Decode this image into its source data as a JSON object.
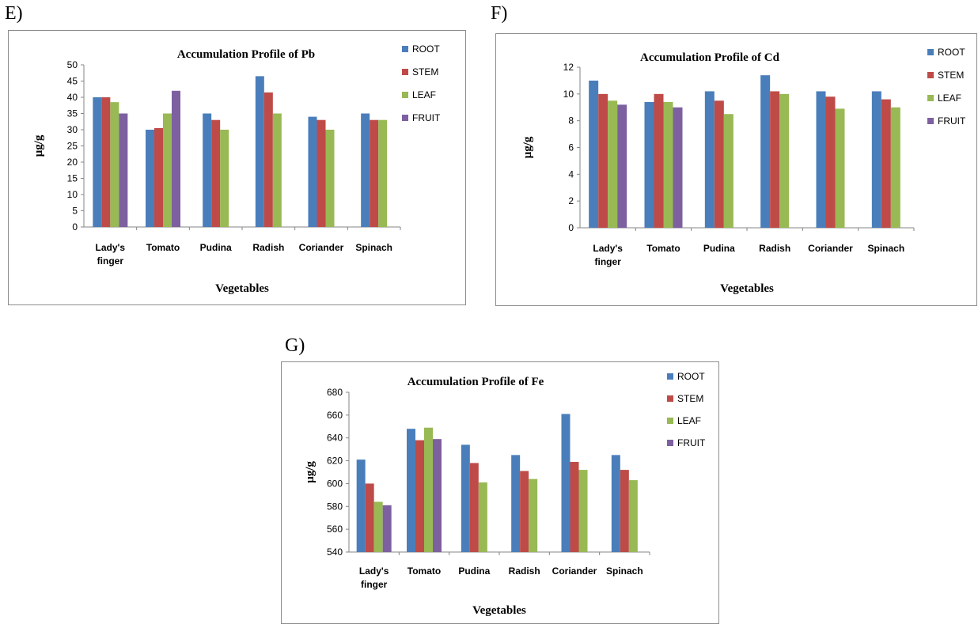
{
  "panels": [
    {
      "letter": "E)"
    },
    {
      "letter": "F)"
    },
    {
      "letter": "G)"
    }
  ],
  "colors": {
    "ROOT": "#4a7ebb",
    "STEM": "#be4b48",
    "LEAF": "#98b954",
    "FRUIT": "#7d60a0"
  },
  "chart_data": [
    {
      "type": "bar",
      "title": "Accumulation Profile of Pb",
      "xlabel": "Vegetables",
      "ylabel": "µg/g",
      "ylim": [
        0,
        50
      ],
      "yticks": [
        0,
        5,
        10,
        15,
        20,
        25,
        30,
        35,
        40,
        45,
        50
      ],
      "grid": false,
      "legend_position": "right",
      "categories": [
        "Lady's finger",
        "Tomato",
        "Pudina",
        "Radish",
        "Coriander",
        "Spinach"
      ],
      "series": [
        {
          "name": "ROOT",
          "values": [
            40,
            30,
            35,
            46.5,
            34,
            35
          ]
        },
        {
          "name": "STEM",
          "values": [
            40,
            30.5,
            33,
            41.5,
            33,
            33
          ]
        },
        {
          "name": "LEAF",
          "values": [
            38.5,
            35,
            30,
            35,
            30,
            33
          ]
        },
        {
          "name": "FRUIT",
          "values": [
            35,
            42,
            null,
            null,
            null,
            null
          ]
        }
      ]
    },
    {
      "type": "bar",
      "title": "Accumulation Profile of Cd",
      "xlabel": "Vegetables",
      "ylabel": "µg/g",
      "ylim": [
        0,
        12
      ],
      "yticks": [
        0,
        2,
        4,
        6,
        8,
        10,
        12
      ],
      "grid": false,
      "legend_position": "right",
      "categories": [
        "Lady's finger",
        "Tomato",
        "Pudina",
        "Radish",
        "Coriander",
        "Spinach"
      ],
      "series": [
        {
          "name": "ROOT",
          "values": [
            11,
            9.4,
            10.2,
            11.4,
            10.2,
            10.2
          ]
        },
        {
          "name": "STEM",
          "values": [
            10,
            10,
            9.5,
            10.2,
            9.8,
            9.6
          ]
        },
        {
          "name": "LEAF",
          "values": [
            9.5,
            9.4,
            8.5,
            10,
            8.9,
            9
          ]
        },
        {
          "name": "FRUIT",
          "values": [
            9.2,
            9,
            null,
            null,
            null,
            null
          ]
        }
      ]
    },
    {
      "type": "bar",
      "title": "Accumulation Profile of Fe",
      "xlabel": "Vegetables",
      "ylabel": "µg/g",
      "ylim": [
        540,
        680
      ],
      "yticks": [
        540,
        560,
        580,
        600,
        620,
        640,
        660,
        680
      ],
      "grid": false,
      "legend_position": "right",
      "categories": [
        "Lady's finger",
        "Tomato",
        "Pudina",
        "Radish",
        "Coriander",
        "Spinach"
      ],
      "series": [
        {
          "name": "ROOT",
          "values": [
            621,
            648,
            634,
            625,
            661,
            625
          ]
        },
        {
          "name": "STEM",
          "values": [
            600,
            638,
            618,
            611,
            619,
            612
          ]
        },
        {
          "name": "LEAF",
          "values": [
            584,
            649,
            601,
            604,
            612,
            603
          ]
        },
        {
          "name": "FRUIT",
          "values": [
            581,
            639,
            null,
            null,
            null,
            null
          ]
        }
      ]
    }
  ]
}
